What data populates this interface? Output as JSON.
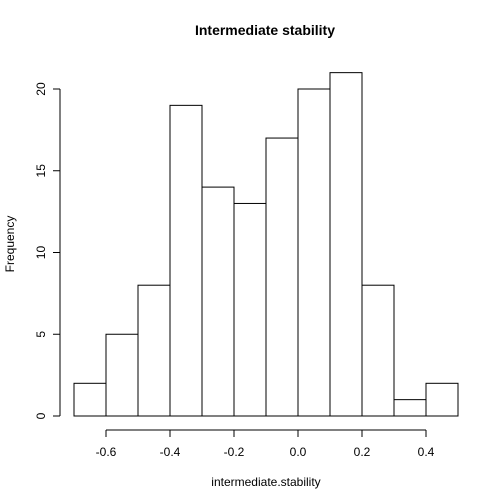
{
  "chart_data": {
    "type": "bar",
    "title": "Intermediate stability",
    "xlabel": "intermediate.stability",
    "ylabel": "Frequency",
    "bins": [
      {
        "from": -0.7,
        "to": -0.6,
        "count": 2
      },
      {
        "from": -0.6,
        "to": -0.5,
        "count": 5
      },
      {
        "from": -0.5,
        "to": -0.4,
        "count": 8
      },
      {
        "from": -0.4,
        "to": -0.3,
        "count": 19
      },
      {
        "from": -0.3,
        "to": -0.2,
        "count": 14
      },
      {
        "from": -0.2,
        "to": -0.1,
        "count": 13
      },
      {
        "from": -0.1,
        "to": 0.0,
        "count": 17
      },
      {
        "from": 0.0,
        "to": 0.1,
        "count": 20
      },
      {
        "from": 0.1,
        "to": 0.2,
        "count": 21
      },
      {
        "from": 0.2,
        "to": 0.3,
        "count": 8
      },
      {
        "from": 0.3,
        "to": 0.4,
        "count": 1
      },
      {
        "from": 0.4,
        "to": 0.5,
        "count": 2
      }
    ],
    "xticks": [
      {
        "value": -0.6,
        "label": "-0.6"
      },
      {
        "value": -0.4,
        "label": "-0.4"
      },
      {
        "value": -0.2,
        "label": "-0.2"
      },
      {
        "value": 0.0,
        "label": "0.0"
      },
      {
        "value": 0.2,
        "label": "0.2"
      },
      {
        "value": 0.4,
        "label": "0.4"
      }
    ],
    "yticks": [
      {
        "value": 0,
        "label": "0"
      },
      {
        "value": 5,
        "label": "5"
      },
      {
        "value": 10,
        "label": "10"
      },
      {
        "value": 15,
        "label": "15"
      },
      {
        "value": 20,
        "label": "20"
      }
    ],
    "xlim": [
      -0.7,
      0.5
    ],
    "ylim": [
      0,
      21
    ],
    "grid": false,
    "legend": "none"
  }
}
